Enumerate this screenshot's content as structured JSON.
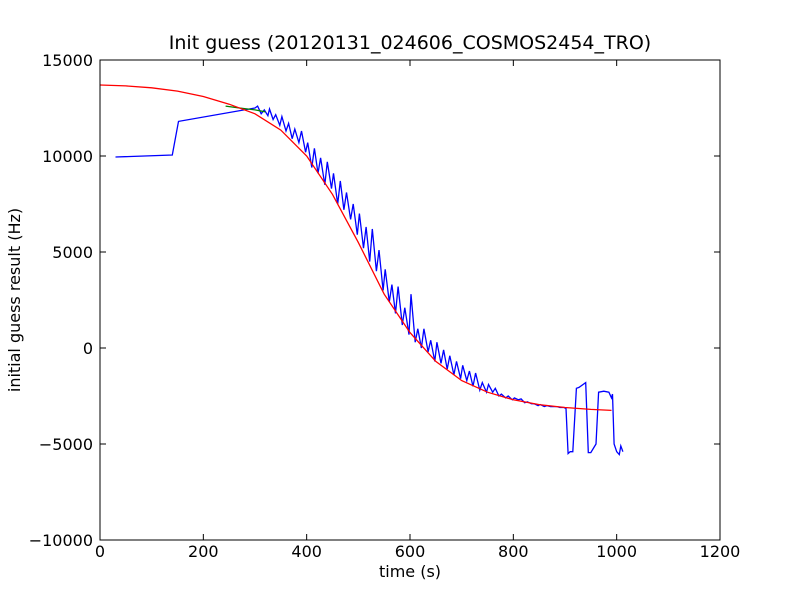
{
  "chart_data": {
    "type": "line",
    "title": "Init guess (20120131_024606_COSMOS2454_TRO)",
    "xlabel": "time (s)",
    "ylabel": "initial guess result (Hz)",
    "xlim": [
      0,
      1200
    ],
    "ylim": [
      -10000,
      15000
    ],
    "xticks": [
      0,
      200,
      400,
      600,
      800,
      1000,
      1200
    ],
    "yticks": [
      -10000,
      -5000,
      0,
      5000,
      10000,
      15000
    ],
    "xtick_labels": [
      "0",
      "200",
      "400",
      "600",
      "800",
      "1000",
      "1200"
    ],
    "ytick_labels": [
      "−10000",
      "−5000",
      "0",
      "5000",
      "10000",
      "15000"
    ],
    "grid": false,
    "series": [
      {
        "color": "#0000ff",
        "x": [
          30,
          140,
          152,
          300,
          305,
          312,
          318,
          325,
          328,
          335,
          340,
          348,
          352,
          360,
          365,
          372,
          377,
          385,
          390,
          398,
          402,
          410,
          415,
          422,
          427,
          435,
          440,
          448,
          452,
          460,
          465,
          472,
          477,
          485,
          490,
          498,
          502,
          510,
          515,
          522,
          527,
          535,
          540,
          548,
          552,
          560,
          565,
          572,
          577,
          585,
          590,
          598,
          602,
          610,
          615,
          622,
          627,
          635,
          640,
          648,
          652,
          660,
          665,
          672,
          677,
          685,
          690,
          698,
          702,
          710,
          715,
          722,
          727,
          735,
          740,
          748,
          752,
          760,
          765,
          772,
          777,
          785,
          790,
          798,
          802,
          810,
          815,
          822,
          827,
          835,
          840,
          848,
          852,
          860,
          865,
          872,
          877,
          885,
          890,
          898,
          902,
          906,
          910,
          915,
          922,
          927,
          940,
          945,
          950,
          960,
          965,
          975,
          985,
          990,
          992,
          995,
          1000,
          1005,
          1008,
          1012
        ],
        "y": [
          9950,
          10050,
          11800,
          12500,
          12600,
          12200,
          12400,
          12100,
          12450,
          11900,
          12150,
          11600,
          12050,
          11300,
          11700,
          10900,
          11400,
          10700,
          11300,
          10200,
          10700,
          9400,
          10400,
          9100,
          9900,
          8500,
          9700,
          8300,
          9100,
          7500,
          8700,
          7200,
          8100,
          6700,
          7500,
          5900,
          7000,
          5200,
          6300,
          4500,
          6200,
          4000,
          5100,
          3000,
          4100,
          2400,
          3300,
          1800,
          3200,
          1200,
          2100,
          700,
          2800,
          300,
          1000,
          0,
          1000,
          -200,
          400,
          -700,
          300,
          -800,
          -100,
          -1100,
          -400,
          -1400,
          -700,
          -1600,
          -900,
          -1700,
          -1200,
          -2000,
          -1300,
          -2200,
          -1800,
          -2300,
          -1900,
          -2300,
          -2100,
          -2500,
          -2400,
          -2600,
          -2500,
          -2700,
          -2600,
          -2700,
          -2650,
          -2850,
          -2800,
          -2900,
          -2900,
          -3000,
          -2950,
          -3050,
          -3000,
          -3050,
          -3050,
          -3050,
          -3100,
          -3100,
          -3150,
          -5500,
          -5400,
          -5400,
          -2100,
          -2050,
          -1800,
          -5450,
          -5450,
          -5000,
          -2300,
          -2250,
          -2300,
          -2600,
          -2400,
          -5000,
          -5400,
          -5550,
          -5100,
          -5400
        ]
      },
      {
        "color": "#008000",
        "x": [
          243,
          270,
          300,
          320
        ],
        "y": [
          12600,
          12500,
          12400,
          12300
        ]
      },
      {
        "color": "#ff0000",
        "x": [
          0,
          50,
          100,
          150,
          200,
          250,
          300,
          350,
          400,
          450,
          500,
          550,
          600,
          650,
          700,
          750,
          800,
          850,
          900,
          950,
          990
        ],
        "y": [
          13700,
          13650,
          13550,
          13380,
          13100,
          12700,
          12200,
          11350,
          10000,
          8000,
          5500,
          2800,
          800,
          -700,
          -1700,
          -2300,
          -2700,
          -2950,
          -3100,
          -3200,
          -3250
        ]
      }
    ]
  }
}
